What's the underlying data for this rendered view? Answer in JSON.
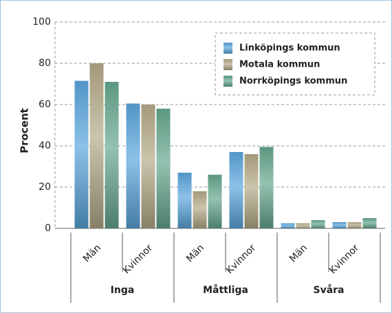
{
  "chart_data": {
    "type": "bar",
    "y_label": "Procent",
    "categories": [
      "Män",
      "Kvinnor",
      "Män",
      "Kvinnor",
      "Män",
      "Kvinnor"
    ],
    "groups": [
      "Inga",
      "Måttliga",
      "Svåra"
    ],
    "series": [
      {
        "name": "Linköpings kommun",
        "color": "#5ba7dc",
        "values": [
          71.5,
          60.5,
          27,
          37,
          2.5,
          3
        ]
      },
      {
        "name": "Motala kommun",
        "color": "#b5aa88",
        "values": [
          80,
          60,
          18,
          36,
          2.5,
          3
        ]
      },
      {
        "name": "Norrköpings kommun",
        "color": "#66a88e",
        "values": [
          71,
          58,
          26,
          39.5,
          4,
          5
        ]
      }
    ],
    "ylim": [
      0,
      100
    ],
    "yticks": [
      0,
      20,
      40,
      60,
      80,
      100
    ],
    "grid": true,
    "legend": "top-right"
  }
}
